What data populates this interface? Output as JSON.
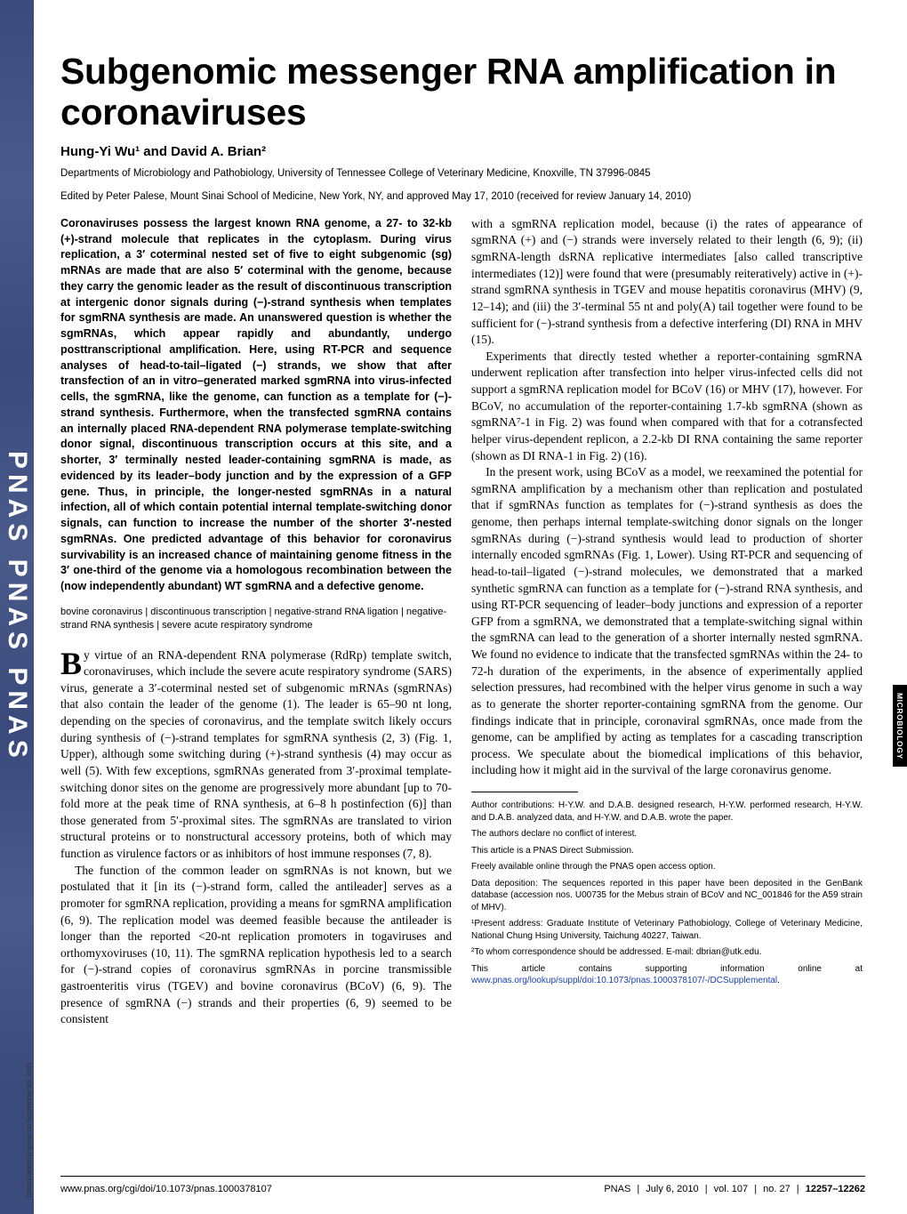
{
  "journal_strip": "PNAS PNAS PNAS",
  "title": "Subgenomic messenger RNA amplification in coronaviruses",
  "authors_html": "Hung-Yi Wu¹ and David A. Brian²",
  "affiliation": "Departments of Microbiology and Pathobiology, University of Tennessee College of Veterinary Medicine, Knoxville, TN 37996-0845",
  "edited": "Edited by Peter Palese, Mount Sinai School of Medicine, New York, NY, and approved May 17, 2010 (received for review January 14, 2010)",
  "abstract": "Coronaviruses possess the largest known RNA genome, a 27- to 32-kb (+)-strand molecule that replicates in the cytoplasm. During virus replication, a 3′ coterminal nested set of five to eight subgenomic (sg) mRNAs are made that are also 5′ coterminal with the genome, because they carry the genomic leader as the result of discontinuous transcription at intergenic donor signals during (−)-strand synthesis when templates for sgmRNA synthesis are made. An unanswered question is whether the sgmRNAs, which appear rapidly and abundantly, undergo posttranscriptional amplification. Here, using RT-PCR and sequence analyses of head-to-tail–ligated (−) strands, we show that after transfection of an in vitro–generated marked sgmRNA into virus-infected cells, the sgmRNA, like the genome, can function as a template for (−)-strand synthesis. Furthermore, when the transfected sgmRNA contains an internally placed RNA-dependent RNA polymerase template-switching donor signal, discontinuous transcription occurs at this site, and a shorter, 3′ terminally nested leader-containing sgmRNA is made, as evidenced by its leader–body junction and by the expression of a GFP gene. Thus, in principle, the longer-nested sgmRNAs in a natural infection, all of which contain potential internal template-switching donor signals, can function to increase the number of the shorter 3′-nested sgmRNAs. One predicted advantage of this behavior for coronavirus survivability is an increased chance of maintaining genome fitness in the 3′ one-third of the genome via a homologous recombination between the (now independently abundant) WT sgmRNA and a defective genome.",
  "keywords": "bovine coronavirus | discontinuous transcription | negative-strand RNA ligation | negative-strand RNA synthesis | severe acute respiratory syndrome",
  "left_body": [
    "y virtue of an RNA-dependent RNA polymerase (RdRp) template switch, coronaviruses, which include the severe acute respiratory syndrome (SARS) virus, generate a 3′-coterminal nested set of subgenomic mRNAs (sgmRNAs) that also contain the leader of the genome (1). The leader is 65–90 nt long, depending on the species of coronavirus, and the template switch likely occurs during synthesis of (−)-strand templates for sgmRNA synthesis (2, 3) (Fig. 1, Upper), although some switching during (+)-strand synthesis (4) may occur as well (5). With few exceptions, sgmRNAs generated from 3′-proximal template- switching donor sites on the genome are progressively more abundant [up to 70-fold more at the peak time of RNA synthesis, at 6–8 h postinfection (6)] than those generated from 5′-proximal sites. The sgmRNAs are translated to virion structural proteins or to nonstructural accessory proteins, both of which may function as virulence factors or as inhibitors of host immune responses (7, 8).",
    "The function of the common leader on sgmRNAs is not known, but we postulated that it [in its (−)-strand form, called the antileader] serves as a promoter for sgmRNA replication, providing a means for sgmRNA amplification (6, 9). The replication model was deemed feasible because the antileader is longer than the reported <20-nt replication promoters in togaviruses and orthomyxoviruses (10, 11). The sgmRNA replication hypothesis led to a search for (−)-strand copies of coronavirus sgmRNAs in porcine transmissible gastroenteritis virus (TGEV) and bovine coronavirus (BCoV) (6, 9). The presence of sgmRNA (−) strands and their properties (6, 9) seemed to be consistent"
  ],
  "right_body": [
    "with a sgmRNA replication model, because (i) the rates of appearance of sgmRNA (+) and (−) strands were inversely related to their length (6, 9); (ii) sgmRNA-length dsRNA replicative intermediates [also called transcriptive intermediates (12)] were found that were (presumably reiteratively) active in (+)-strand sgmRNA synthesis in TGEV and mouse hepatitis coronavirus (MHV) (9, 12–14); and (iii) the 3′-terminal 55 nt and poly(A) tail together were found to be sufficient for (−)-strand synthesis from a defective interfering (DI) RNA in MHV (15).",
    "Experiments that directly tested whether a reporter-containing sgmRNA underwent replication after transfection into helper virus-infected cells did not support a sgmRNA replication model for BCoV (16) or MHV (17), however. For BCoV, no accumulation of the reporter-containing 1.7-kb sgmRNA (shown as sgmRNA⁷-1 in Fig. 2) was found when compared with that for a cotransfected helper virus-dependent replicon, a 2.2-kb DI RNA containing the same reporter (shown as DI RNA-1 in Fig. 2) (16).",
    "In the present work, using BCoV as a model, we reexamined the potential for sgmRNA amplification by a mechanism other than replication and postulated that if sgmRNAs function as templates for (−)-strand synthesis as does the genome, then perhaps internal template-switching donor signals on the longer sgmRNAs during (−)-strand synthesis would lead to production of shorter internally encoded sgmRNAs (Fig. 1, Lower). Using RT-PCR and sequencing of head-to-tail–ligated (−)-strand molecules, we demonstrated that a marked synthetic sgmRNA can function as a template for (−)-strand RNA synthesis, and using RT-PCR sequencing of leader–body junctions and expression of a reporter GFP from a sgmRNA, we demonstrated that a template-switching signal within the sgmRNA can lead to the generation of a shorter internally nested sgmRNA. We found no evidence to indicate that the transfected sgmRNAs within the 24- to 72-h duration of the experiments, in the absence of experimentally applied selection pressures, had recombined with the helper virus genome in such a way as to generate the shorter reporter-containing sgmRNA from the genome. Our findings indicate that in principle, coronaviral sgmRNAs, once made from the genome, can be amplified by acting as templates for a cascading transcription process. We speculate about the biomedical implications of this behavior, including how it might aid in the survival of the large coronavirus genome."
  ],
  "footnotes": [
    "Author contributions: H-Y.W. and D.A.B. designed research, H-Y.W. performed research, H-Y.W. and D.A.B. analyzed data, and H-Y.W. and D.A.B. wrote the paper.",
    "The authors declare no conflict of interest.",
    "This article is a PNAS Direct Submission.",
    "Freely available online through the PNAS open access option.",
    "Data deposition: The sequences reported in this paper have been deposited in the GenBank database (accession nos. U00735 for the Mebus strain of BCoV and NC_001846 for the A59 strain of MHV).",
    "¹Present address: Graduate Institute of Veterinary Pathobiology, College of Veterinary Medicine, National Chung Hsing University, Taichung 40227, Taiwan.",
    "²To whom correspondence should be addressed. E-mail: dbrian@utk.edu."
  ],
  "supp_note_prefix": "This article contains supporting information online at ",
  "supp_note_link": "www.pnas.org/lookup/suppl/doi:10.1073/pnas.1000378107/-/DCSupplemental",
  "side_tab": "MICROBIOLOGY",
  "footer_left": "www.pnas.org/cgi/doi/10.1073/pnas.1000378107",
  "footer_right": {
    "journal": "PNAS",
    "date": "July 6, 2010",
    "vol_label": "vol. 107",
    "no_label": "no. 27",
    "pages": "12257–12262"
  },
  "download_note": "Downloaded by guest on September 26, 2021"
}
